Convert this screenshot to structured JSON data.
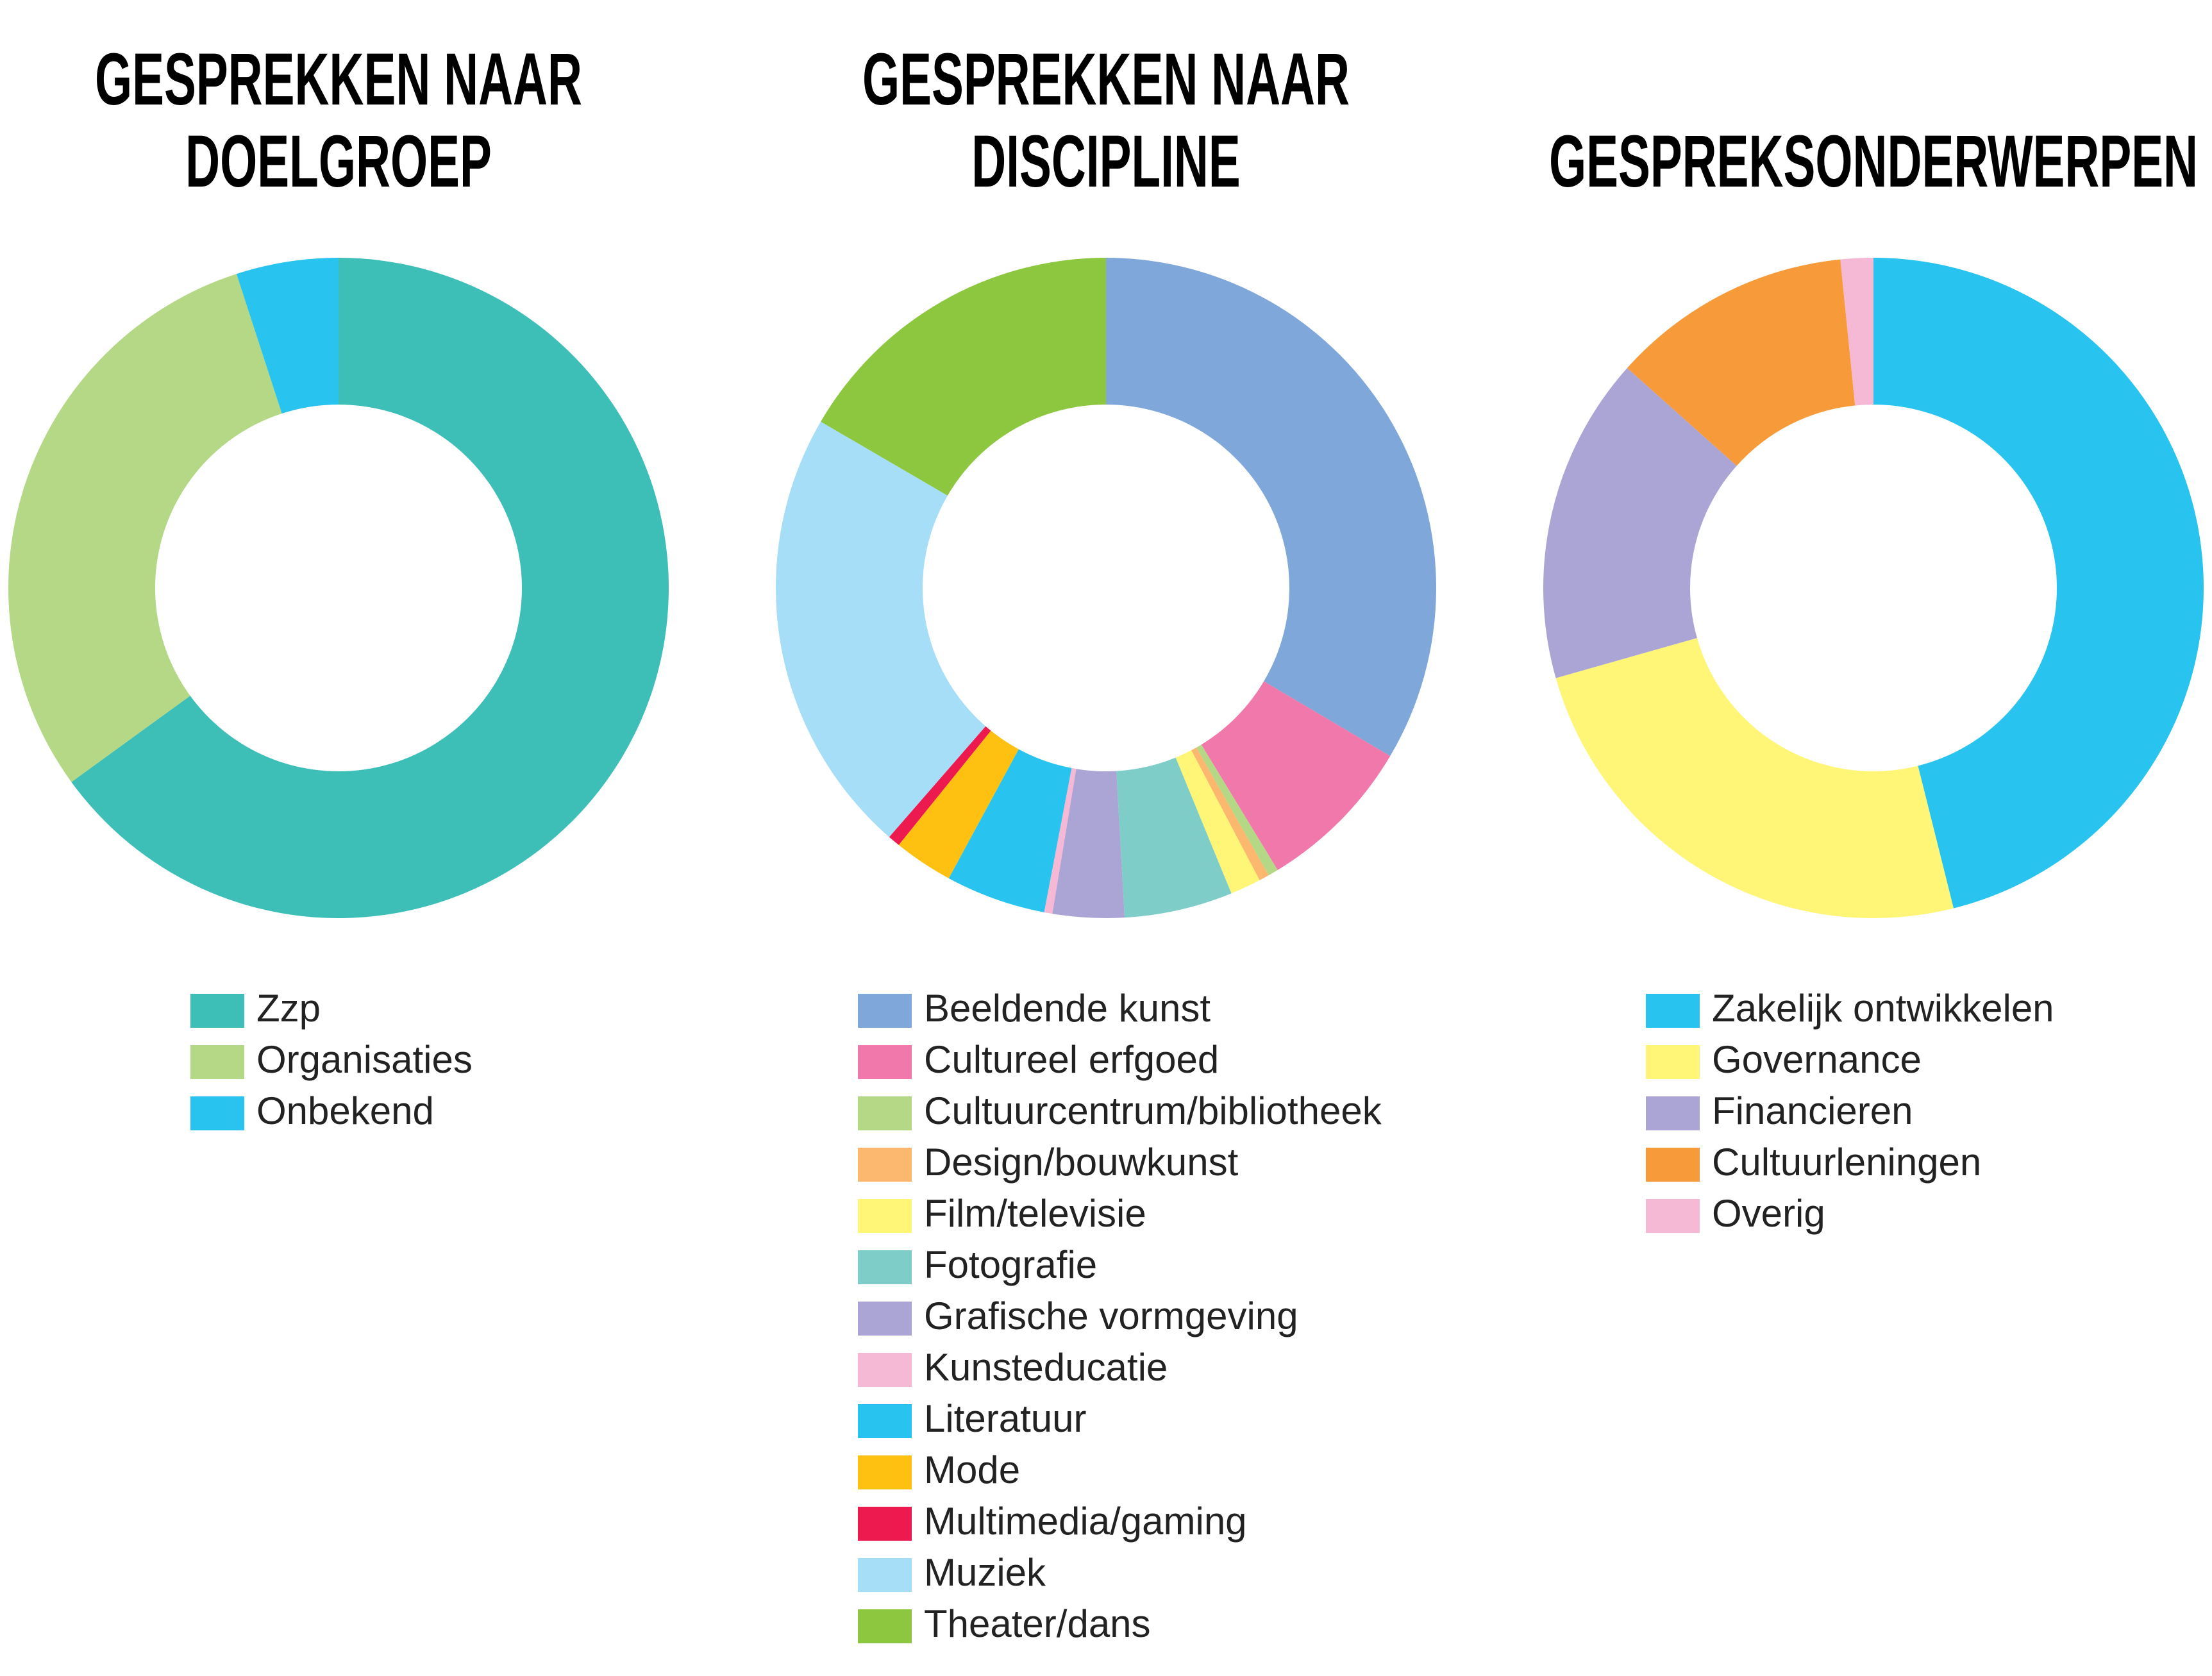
{
  "chart_data": [
    {
      "type": "donut",
      "title": "GESPREKKEN NAAR DOELGROEP",
      "categories": [
        "Zzp",
        "Organisaties",
        "Onbekend"
      ],
      "values": [
        65,
        30,
        5
      ],
      "colors": [
        "#3dbfb8",
        "#b5d886",
        "#29c3f0"
      ]
    },
    {
      "type": "donut",
      "title": "GESPREKKEN NAAR DISCIPLINE",
      "categories": [
        "Beeldende kunst",
        "Cultureel erfgoed",
        "Cultuurcentrum/bibliotheek",
        "Design/bouwkunst",
        "Film/televisie",
        "Fotografie",
        "Grafische vormgeving",
        "Kunsteducatie",
        "Literatuur",
        "Mode",
        "Multimedia/gaming",
        "Muziek",
        "Theater/dans"
      ],
      "values": [
        33.5,
        7.8,
        0.5,
        0.5,
        1.5,
        5.3,
        3.5,
        0.4,
        4.9,
        2.9,
        0.6,
        22,
        16.6
      ],
      "colors": [
        "#7fa7d9",
        "#f078aa",
        "#b5d886",
        "#fbb86e",
        "#fff678",
        "#7ecdc8",
        "#aba5d5",
        "#f5b8d5",
        "#29c3f0",
        "#fec112",
        "#ed1a4f",
        "#a6ddf7",
        "#8dc63f"
      ]
    },
    {
      "type": "donut",
      "title": "GESPREKSONDERWERPEN",
      "categories": [
        "Zakelijk ontwikkelen",
        "Governance",
        "Financieren",
        "Cultuurleningen",
        "Overig"
      ],
      "values": [
        46.1,
        24.5,
        16,
        11.8,
        1.6
      ],
      "colors": [
        "#29c3f0",
        "#fff678",
        "#aba5d5",
        "#f79b3a",
        "#f5b8d5"
      ]
    }
  ]
}
